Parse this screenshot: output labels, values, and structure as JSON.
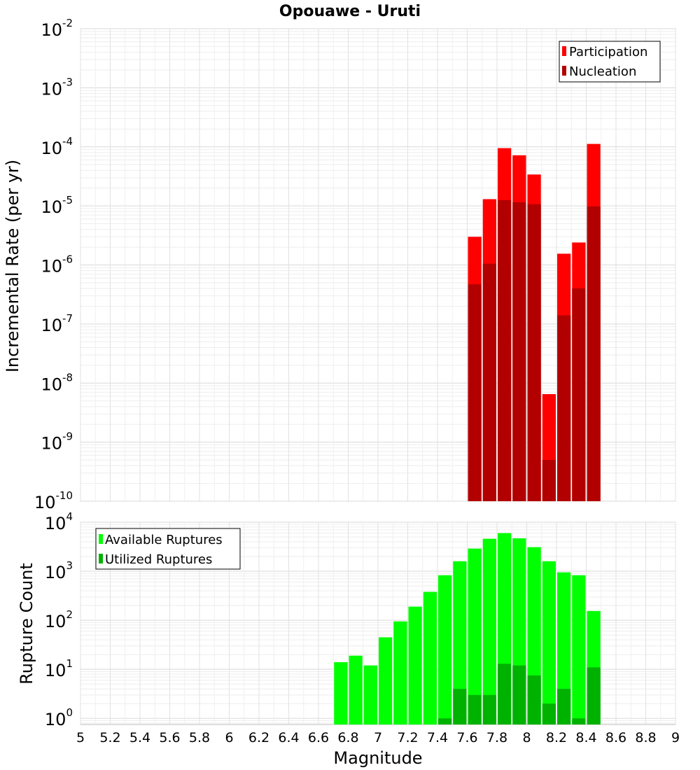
{
  "title": "Opouawe - Uruti",
  "colors": {
    "participation": "#ff0000",
    "nucleation": "#b20000",
    "available": "#00ff00",
    "utilized": "#00b200"
  },
  "chart_data": [
    {
      "type": "bar",
      "scale": "log",
      "ylabel": "Incremental Rate (per yr)",
      "ylim": [
        1e-10,
        0.01
      ],
      "yticks": [
        {
          "base": "10",
          "exp": "-2"
        },
        {
          "base": "10",
          "exp": "-3"
        },
        {
          "base": "10",
          "exp": "-4"
        },
        {
          "base": "10",
          "exp": "-5"
        },
        {
          "base": "10",
          "exp": "-6"
        },
        {
          "base": "10",
          "exp": "-7"
        },
        {
          "base": "10",
          "exp": "-8"
        },
        {
          "base": "10",
          "exp": "-9"
        },
        {
          "base": "10",
          "exp": "-10"
        }
      ],
      "legend": {
        "position": "top-right",
        "items": [
          "Participation",
          "Nucleation"
        ]
      },
      "x": [
        7.65,
        7.75,
        7.85,
        7.95,
        8.05,
        8.15,
        8.25,
        8.35,
        8.45
      ],
      "series": [
        {
          "name": "Participation",
          "values": [
            3e-06,
            1.3e-05,
            9.5e-05,
            7.2e-05,
            3.4e-05,
            6.5e-09,
            1.55e-06,
            2.4e-06,
            0.000112
          ]
        },
        {
          "name": "Nucleation",
          "values": [
            4.7e-07,
            1.05e-06,
            1.25e-05,
            1.15e-05,
            1.07e-05,
            5e-10,
            1.4e-07,
            4e-07,
            9.8e-06
          ]
        }
      ]
    },
    {
      "type": "bar",
      "scale": "log",
      "ylabel": "Rupture Count",
      "xlabel": "Magnitude",
      "ylim": [
        0.75,
        10000
      ],
      "yticks": [
        {
          "base": "10",
          "exp": "4"
        },
        {
          "base": "10",
          "exp": "3"
        },
        {
          "base": "10",
          "exp": "2"
        },
        {
          "base": "10",
          "exp": "1"
        },
        {
          "base": "10",
          "exp": "0"
        }
      ],
      "xlim": [
        5,
        9
      ],
      "xticks": [
        "5",
        "5.2",
        "5.4",
        "5.6",
        "5.8",
        "6",
        "6.2",
        "6.4",
        "6.6",
        "6.8",
        "7",
        "7.2",
        "7.4",
        "7.6",
        "7.8",
        "8",
        "8.2",
        "8.4",
        "8.6",
        "8.8",
        "9"
      ],
      "legend": {
        "position": "top-left",
        "items": [
          "Available Ruptures",
          "Utilized Ruptures"
        ]
      },
      "x": [
        6.75,
        6.85,
        6.95,
        7.05,
        7.15,
        7.25,
        7.35,
        7.45,
        7.55,
        7.65,
        7.75,
        7.85,
        7.95,
        8.05,
        8.15,
        8.25,
        8.35,
        8.45
      ],
      "series": [
        {
          "name": "Available Ruptures",
          "values": [
            14,
            19,
            12,
            45,
            95,
            190,
            380,
            830,
            1600,
            2900,
            4600,
            6000,
            4700,
            3100,
            1600,
            950,
            830,
            155
          ]
        },
        {
          "name": "Utilized Ruptures",
          "values": [
            0,
            0,
            0,
            0,
            0,
            0,
            0,
            1,
            4,
            3,
            3,
            13,
            12,
            7.5,
            2,
            4,
            1,
            11
          ]
        }
      ]
    }
  ]
}
